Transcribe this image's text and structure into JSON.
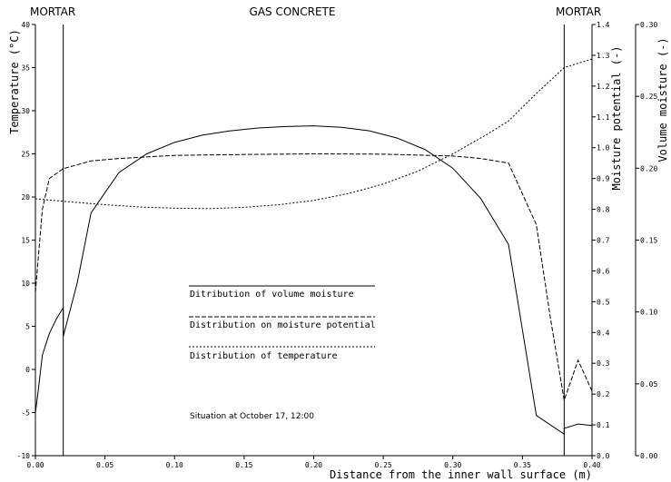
{
  "chart_data": {
    "type": "line",
    "region_labels": [
      "MORTAR",
      "GAS CONCRETE",
      "MORTAR"
    ],
    "xlabel": "Distance from the inner wall surface  (m)",
    "x_range": [
      0,
      0.4
    ],
    "x_ticks": [
      "0.00",
      "0.05",
      "0.10",
      "0.15",
      "0.20",
      "0.25",
      "0.30",
      "0.35",
      "0.40"
    ],
    "x_tick_values": [
      0,
      0.05,
      0.1,
      0.15,
      0.2,
      0.25,
      0.3,
      0.35,
      0.4
    ],
    "boundaries": [
      0.02,
      0.38
    ],
    "note": "Situation at October 17, 12:00",
    "axes": {
      "temperature": {
        "label": "Temperature (°C)",
        "range": [
          -10,
          40
        ],
        "ticks": [
          "-10",
          "-5",
          "0",
          "5",
          "10",
          "15",
          "20",
          "25",
          "30",
          "35",
          "40"
        ],
        "tick_values": [
          -10,
          -5,
          0,
          5,
          10,
          15,
          20,
          25,
          30,
          35,
          40
        ]
      },
      "moisture_potential": {
        "label": "Moisture potential  (-)",
        "range": [
          0,
          1.4
        ],
        "ticks": [
          "0.0",
          "0.1",
          "0.2",
          "0.3",
          "0.4",
          "0.5",
          "0.6",
          "0.7",
          "0.8",
          "0.9",
          "1.0",
          "1.1",
          "1.2",
          "1.3",
          "1.4"
        ],
        "tick_values": [
          0,
          0.1,
          0.2,
          0.3,
          0.4,
          0.5,
          0.6,
          0.7,
          0.8,
          0.9,
          1.0,
          1.1,
          1.2,
          1.3,
          1.4
        ]
      },
      "volume_moisture": {
        "label": "Volume moisture  (-)",
        "range": [
          0,
          0.3
        ],
        "ticks": [
          "0.00",
          "0.05",
          "0.10",
          "0.15",
          "0.20",
          "0.25",
          "0.30"
        ],
        "tick_values": [
          0,
          0.05,
          0.1,
          0.15,
          0.2,
          0.25,
          0.3
        ]
      }
    },
    "series": [
      {
        "name": "Ditribution of volume moisture",
        "axis": "volume_moisture",
        "style": "solid",
        "x": [
          0,
          0.002,
          0.005,
          0.01,
          0.015,
          0.02,
          0.02,
          0.03,
          0.04,
          0.06,
          0.08,
          0.1,
          0.12,
          0.14,
          0.16,
          0.18,
          0.2,
          0.22,
          0.24,
          0.26,
          0.28,
          0.3,
          0.32,
          0.34,
          0.36,
          0.38,
          0.38,
          0.39,
          0.4
        ],
        "values": [
          0.03,
          0.045,
          0.07,
          0.085,
          0.095,
          0.103,
          0.083,
          0.12,
          0.169,
          0.197,
          0.21,
          0.218,
          0.223,
          0.226,
          0.228,
          0.229,
          0.2295,
          0.2285,
          0.226,
          0.221,
          0.213,
          0.2,
          0.179,
          0.147,
          0.028,
          0.015,
          0.019,
          0.022,
          0.021
        ]
      },
      {
        "name": "Distribution on moisture potential",
        "axis": "moisture_potential",
        "style": "dash",
        "x": [
          0,
          0.005,
          0.01,
          0.02,
          0.04,
          0.06,
          0.08,
          0.1,
          0.15,
          0.2,
          0.25,
          0.3,
          0.32,
          0.34,
          0.36,
          0.37,
          0.38,
          0.39,
          0.4
        ],
        "values": [
          0.53,
          0.8,
          0.9,
          0.932,
          0.957,
          0.965,
          0.97,
          0.975,
          0.978,
          0.98,
          0.979,
          0.973,
          0.965,
          0.95,
          0.75,
          0.45,
          0.18,
          0.31,
          0.21
        ]
      },
      {
        "name": "Distribution of temperature",
        "axis": "temperature",
        "style": "dot",
        "x": [
          0,
          0.02,
          0.05,
          0.08,
          0.1,
          0.125,
          0.15,
          0.175,
          0.2,
          0.225,
          0.25,
          0.275,
          0.3,
          0.325,
          0.34,
          0.36,
          0.38,
          0.4
        ],
        "values": [
          19.8,
          19.5,
          19.1,
          18.8,
          18.7,
          18.65,
          18.8,
          19.1,
          19.6,
          20.4,
          21.5,
          23.0,
          25.0,
          27.3,
          28.8,
          32.0,
          35.0,
          36.0
        ]
      }
    ]
  }
}
